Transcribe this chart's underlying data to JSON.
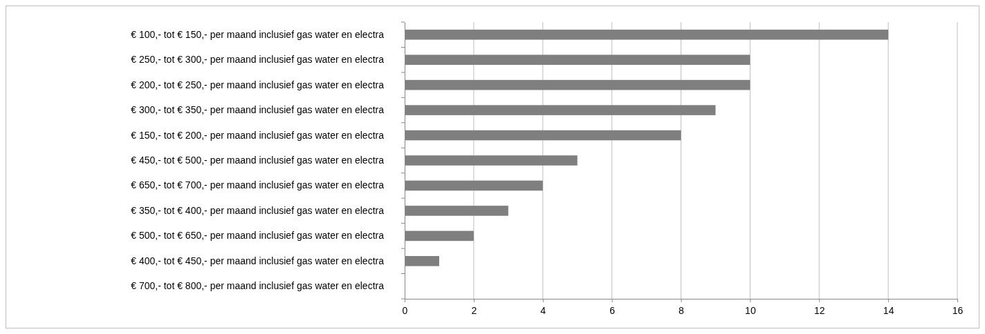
{
  "chart_data": {
    "type": "bar",
    "orientation": "horizontal",
    "categories": [
      "€ 100,- tot € 150,- per maand inclusief gas water en electra",
      "€ 250,- tot € 300,- per maand inclusief gas water en electra",
      "€ 200,- tot € 250,- per maand inclusief gas water en electra",
      "€ 300,- tot € 350,- per maand inclusief gas water en electra",
      "€ 150,- tot € 200,- per maand inclusief gas water en electra",
      "€ 450,- tot € 500,- per maand inclusief gas water en electra",
      "€ 650,- tot € 700,- per maand inclusief gas water en electra",
      "€ 350,- tot € 400,- per maand inclusief gas water en electra",
      "€ 500,- tot € 650,- per maand inclusief gas water en electra",
      "€ 400,- tot € 450,- per maand inclusief gas water en electra",
      "€ 700,- tot € 800,- per maand inclusief gas water en electra"
    ],
    "values": [
      14,
      10,
      10,
      9,
      8,
      5,
      4,
      3,
      2,
      1,
      0
    ],
    "color": "#7f7f7f",
    "xlim": [
      0,
      16
    ],
    "xticks": [
      0,
      2,
      4,
      6,
      8,
      10,
      12,
      14,
      16
    ],
    "grid": "x"
  }
}
